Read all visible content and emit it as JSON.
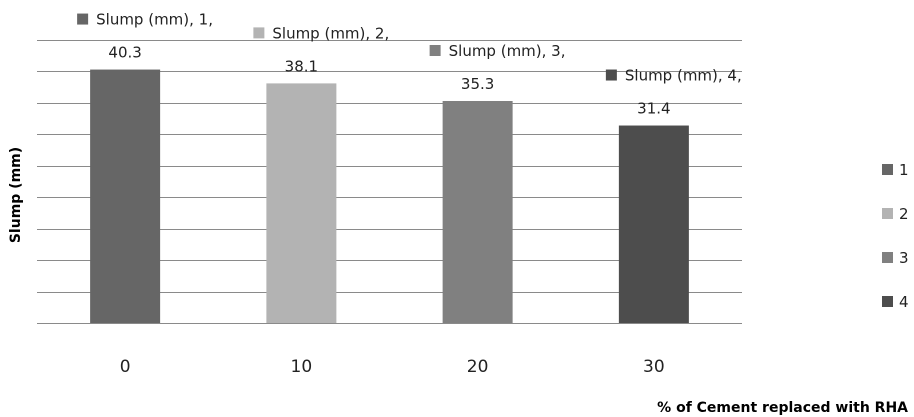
{
  "chart_data": {
    "type": "bar",
    "categories": [
      "0",
      "10",
      "20",
      "30"
    ],
    "series": [
      {
        "name": "Slump (mm)",
        "values": [
          40.3,
          38.1,
          35.3,
          31.4
        ]
      }
    ],
    "data_labels": [
      {
        "line1": "Slump (mm), 1,",
        "line2": "40.3"
      },
      {
        "line1": "Slump (mm), 2,",
        "line2": "38.1"
      },
      {
        "line1": "Slump (mm), 3,",
        "line2": "35.3"
      },
      {
        "line1": "Slump (mm), 4,",
        "line2": "31.4"
      }
    ],
    "bar_colors": [
      "#666666",
      "#b3b3b3",
      "#808080",
      "#4d4d4d"
    ],
    "xlabel": "% of Cement replaced with RHA",
    "ylabel": "Slump (mm)",
    "ylim": [
      0,
      45
    ],
    "grid_step": 5,
    "grid": true,
    "legend": {
      "placement": "right",
      "entries": [
        "1",
        "2",
        "3",
        "4"
      ]
    }
  }
}
